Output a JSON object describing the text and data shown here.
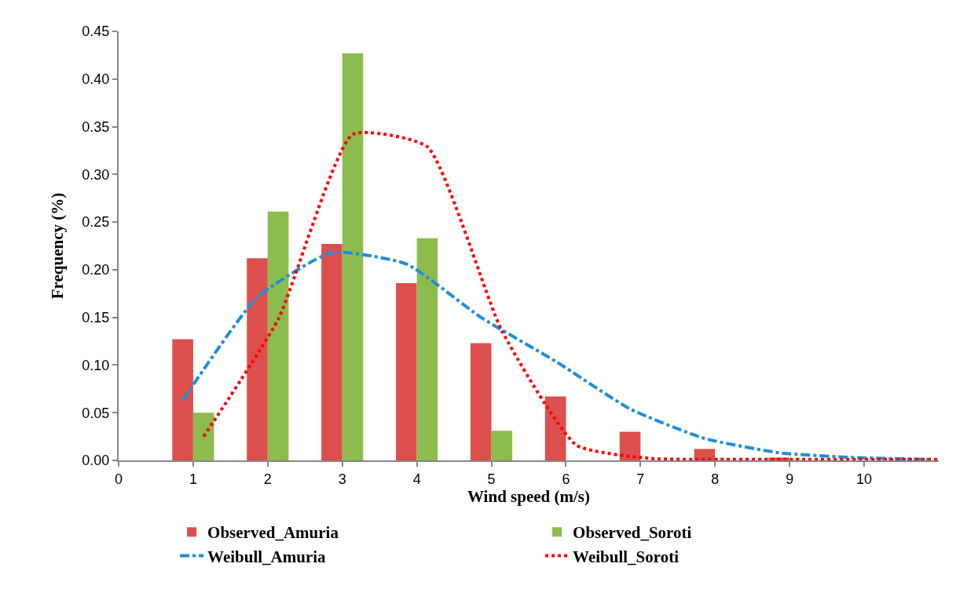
{
  "chart_data": {
    "type": "bar",
    "xlabel": "Wind speed (m/s)",
    "ylabel": "Frequency (%)",
    "x": [
      1,
      2,
      3,
      4,
      5,
      6,
      7,
      8,
      9
    ],
    "series": [
      {
        "name": "Observed_Amuria",
        "color": "#dc4f4c",
        "values": [
          0.127,
          0.212,
          0.227,
          0.186,
          0.123,
          0.067,
          0.03,
          0.012,
          0.003
        ]
      },
      {
        "name": "Observed_Soroti",
        "color": "#8cbb4e",
        "values": [
          0.05,
          0.261,
          0.427,
          0.233,
          0.031,
          null,
          null,
          null,
          null
        ]
      },
      {
        "name": "Weibull_Amuria",
        "type": "line",
        "color": "#1f8ddb",
        "line_style": "dashdot",
        "x": [
          0.86,
          1.86,
          2.86,
          3.86,
          4.86,
          5.86,
          6.86,
          7.86,
          8.86,
          9.86,
          10.86
        ],
        "values": [
          0.063,
          0.171,
          0.218,
          0.206,
          0.15,
          0.104,
          0.054,
          0.023,
          0.008,
          0.003,
          0.001
        ]
      },
      {
        "name": "Weibull_Soroti",
        "type": "line",
        "color": "#ff0000",
        "line_style": "dotted",
        "x": [
          1.14,
          2.14,
          3.14,
          4.14,
          5.14,
          6.14,
          7.14,
          8.14,
          9.14,
          10.14,
          10.98
        ],
        "values": [
          0.025,
          0.148,
          0.342,
          0.329,
          0.136,
          0.016,
          0.002,
          0.001,
          0.001,
          0.001,
          0.001
        ]
      }
    ],
    "xlim": [
      0,
      11
    ],
    "xticks": [
      0,
      1,
      2,
      3,
      4,
      5,
      6,
      7,
      8,
      9,
      10
    ],
    "ylim": [
      0,
      0.45
    ],
    "yticks": [
      {
        "value": 0,
        "label": "0.00"
      },
      {
        "value": 0.05,
        "label": "0.05"
      },
      {
        "value": 0.1,
        "label": "0.10"
      },
      {
        "value": 0.15,
        "label": "0.15"
      },
      {
        "value": 0.2,
        "label": "0.20"
      },
      {
        "value": 0.25,
        "label": "0.25"
      },
      {
        "value": 0.3,
        "label": "0.30"
      },
      {
        "value": 0.35,
        "label": "0.35"
      },
      {
        "value": 0.4,
        "label": "0.40"
      },
      {
        "value": 0.45,
        "label": "0.45"
      }
    ],
    "legend": "bottom"
  }
}
